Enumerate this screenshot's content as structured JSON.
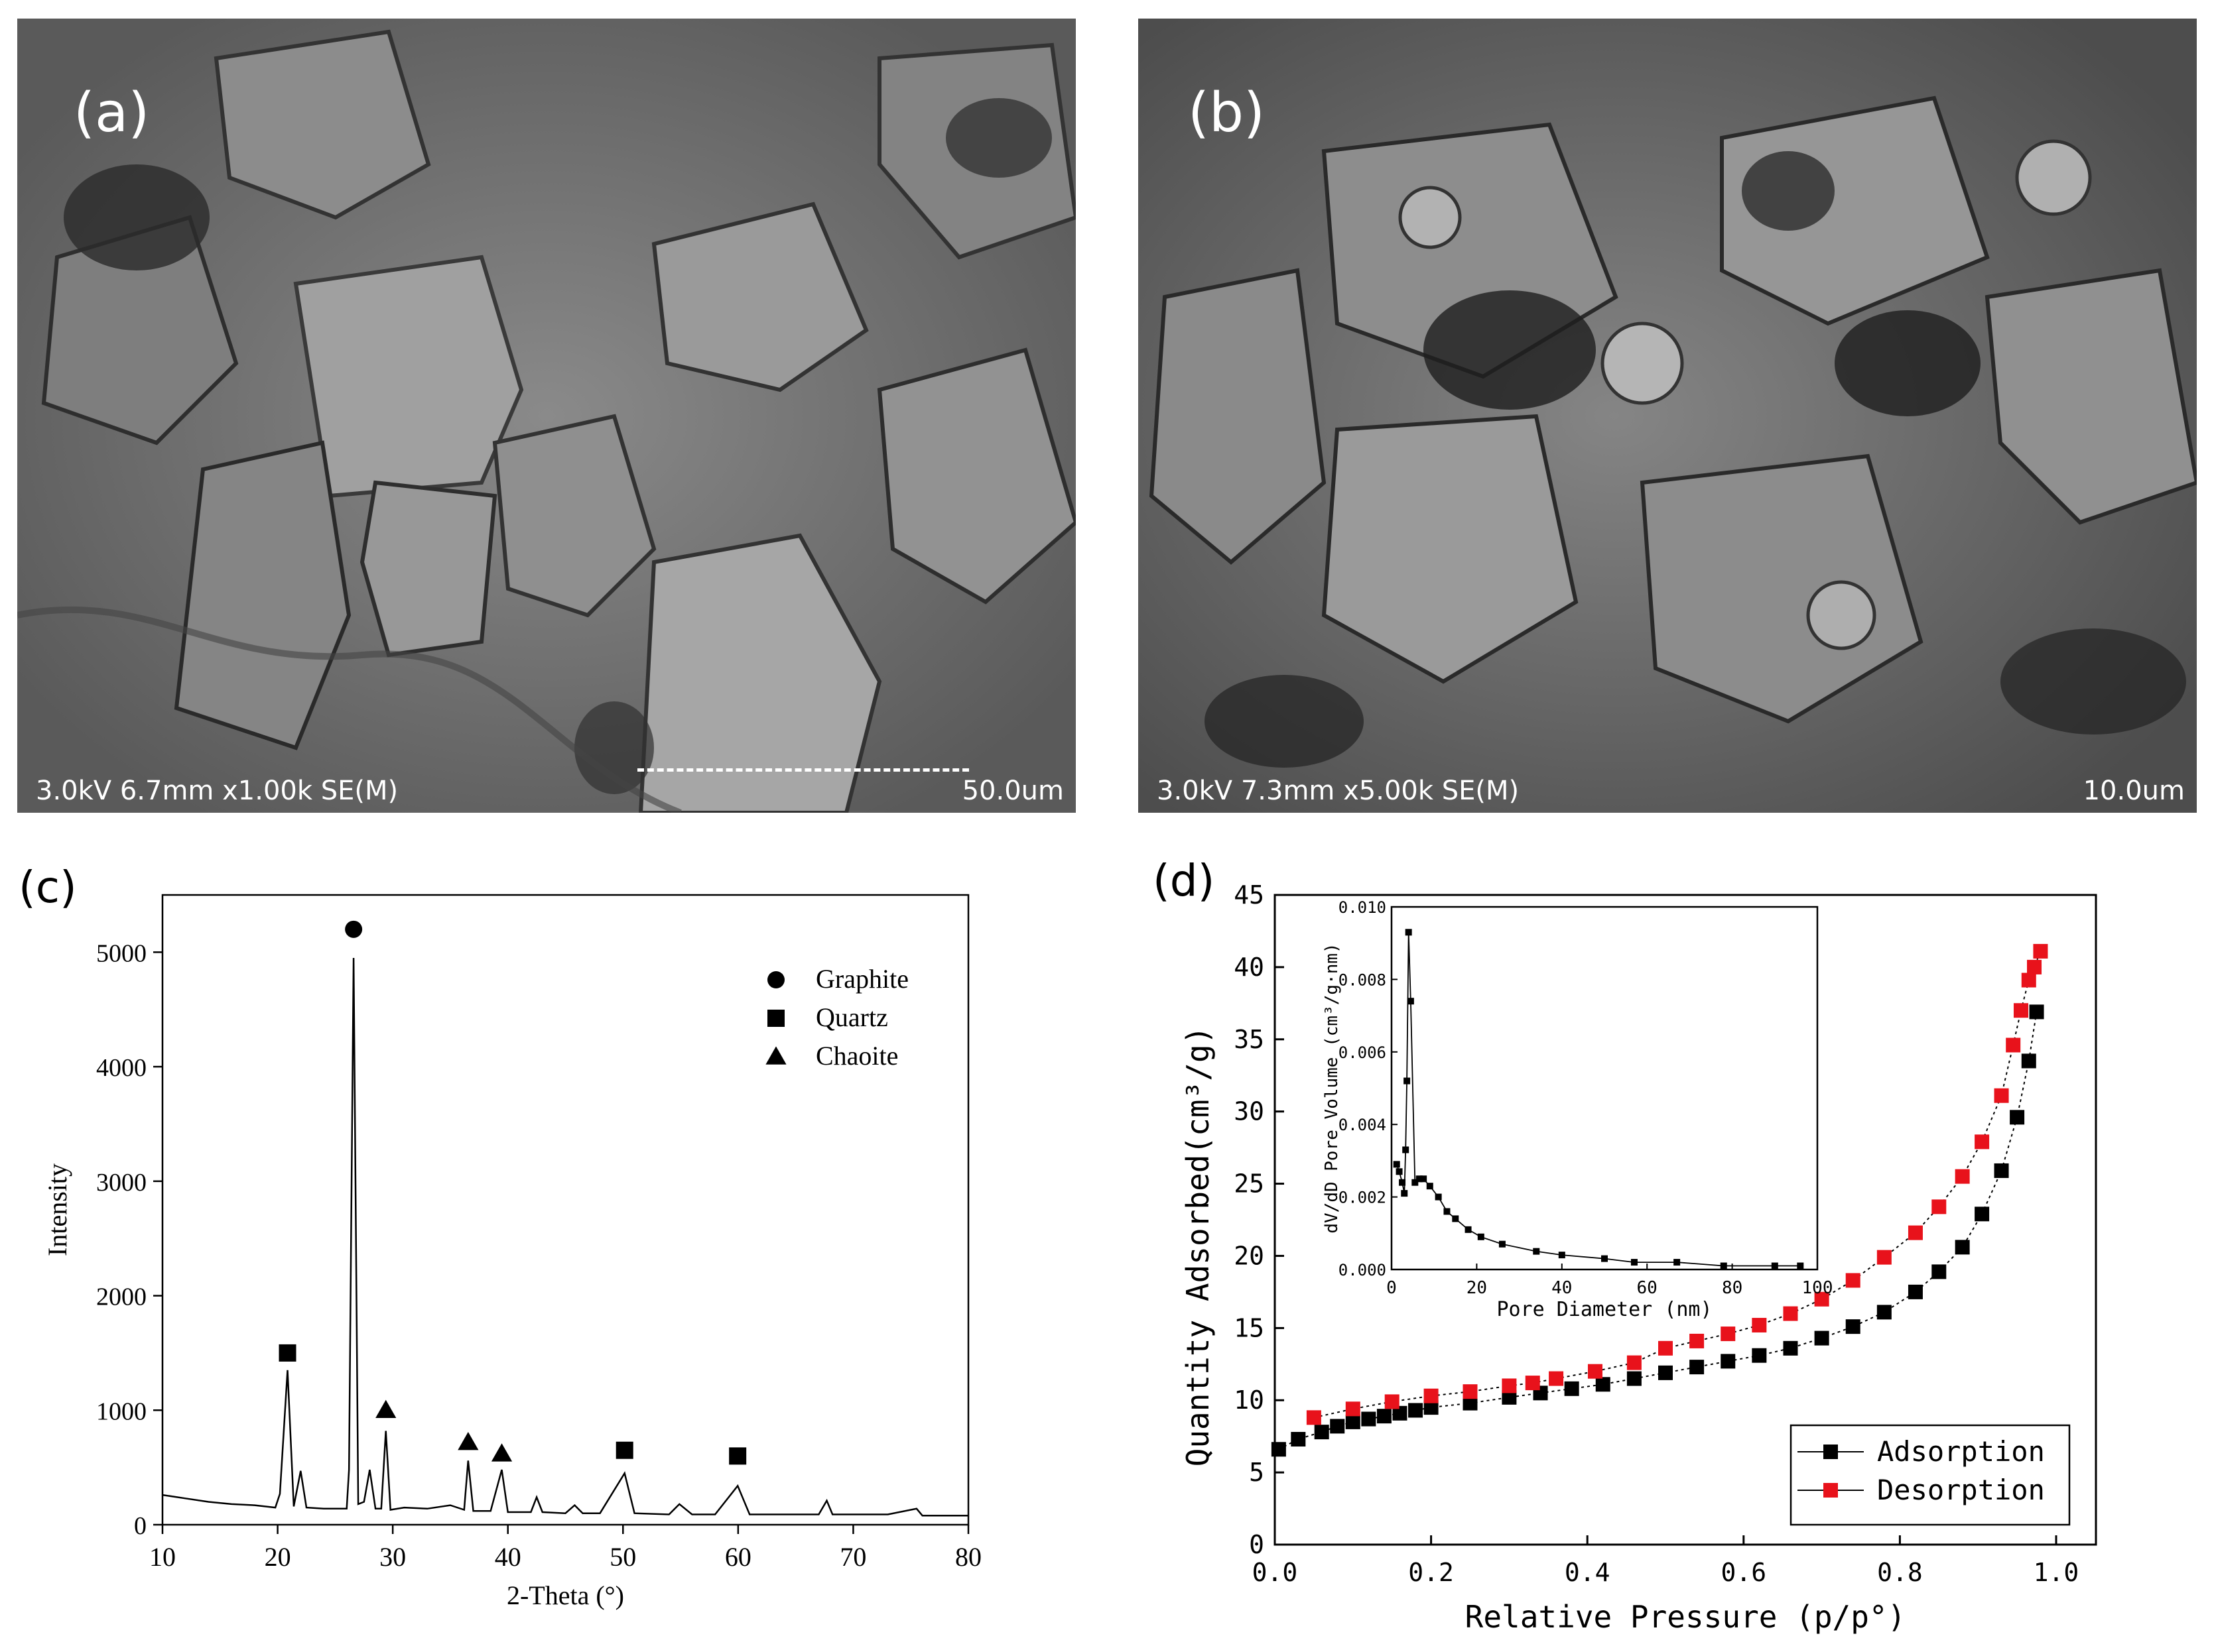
{
  "panels": {
    "a": {
      "label": "(a)",
      "info": "3.0kV 6.7mm x1.00k SE(M)",
      "scale": "50.0um"
    },
    "b": {
      "label": "(b)",
      "info": "3.0kV 7.3mm x5.00k SE(M)",
      "scale": "10.0um"
    },
    "c": {
      "label": "(c)"
    },
    "d": {
      "label": "(d)"
    }
  },
  "chart_data": [
    {
      "panel": "c",
      "type": "line",
      "xlabel": "2-Theta (°)",
      "ylabel": "Intensity",
      "xlim": [
        10,
        80
      ],
      "ylim": [
        0,
        5500
      ],
      "xticks": [
        10,
        20,
        30,
        40,
        50,
        60,
        70,
        80
      ],
      "yticks": [
        0,
        1000,
        2000,
        3000,
        4000,
        5000
      ],
      "series": [
        {
          "x": [
            10,
            12,
            14,
            16,
            18,
            19.8,
            20.2,
            20.86,
            21.4,
            22.0,
            22.5,
            24.0,
            26.0,
            26.2,
            26.6,
            27.0,
            27.5,
            28.0,
            28.5,
            29.0,
            29.4,
            29.8,
            31.0,
            33.0,
            35.0,
            36.2,
            36.55,
            37.0,
            38.5,
            39.47,
            40.0,
            42.0,
            42.5,
            43.0,
            45.0,
            45.8,
            46.5,
            48.0,
            50.14,
            51.0,
            54.0,
            54.9,
            56.0,
            58.0,
            59.96,
            61.0,
            64.0,
            67.0,
            67.7,
            68.2,
            70.0,
            73.0,
            75.5,
            76.0,
            78.0,
            80.0
          ],
          "y": [
            260,
            230,
            200,
            180,
            170,
            150,
            270,
            1350,
            160,
            470,
            150,
            140,
            140,
            480,
            4950,
            180,
            200,
            480,
            140,
            140,
            820,
            130,
            150,
            140,
            170,
            130,
            560,
            120,
            120,
            480,
            110,
            110,
            240,
            110,
            100,
            170,
            100,
            100,
            450,
            100,
            90,
            180,
            90,
            90,
            340,
            90,
            90,
            90,
            210,
            90,
            90,
            90,
            140,
            80,
            80,
            80
          ]
        }
      ],
      "legend": {
        "placement": "top-right",
        "entries": [
          {
            "name": "Graphite",
            "marker": "circle"
          },
          {
            "name": "Quartz",
            "marker": "square"
          },
          {
            "name": "Chaoite",
            "marker": "triangle"
          }
        ]
      },
      "peak_markers": [
        {
          "x": 26.6,
          "y": 5200,
          "marker": "circle"
        },
        {
          "x": 20.86,
          "y": 1500,
          "marker": "square"
        },
        {
          "x": 50.14,
          "y": 650,
          "marker": "square"
        },
        {
          "x": 59.96,
          "y": 600,
          "marker": "square"
        },
        {
          "x": 29.4,
          "y": 1000,
          "marker": "triangle"
        },
        {
          "x": 36.55,
          "y": 720,
          "marker": "triangle"
        },
        {
          "x": 39.47,
          "y": 620,
          "marker": "triangle"
        }
      ]
    },
    {
      "panel": "d",
      "type": "line",
      "xlabel": "Relative Pressure (p/p°)",
      "ylabel": "Quantity Adsorbed(cm³/g)",
      "xlim": [
        0,
        1.0
      ],
      "ylim": [
        0,
        45
      ],
      "xticks": [
        "0.0",
        "0.2",
        "0.4",
        "0.6",
        "0.8",
        "1.0"
      ],
      "yticks": [
        0,
        5,
        10,
        15,
        20,
        25,
        30,
        35,
        40,
        45
      ],
      "legend": {
        "placement": "bottom-right"
      },
      "series": [
        {
          "name": "Adsorption",
          "color": "#000000",
          "x": [
            0.005,
            0.03,
            0.06,
            0.08,
            0.1,
            0.12,
            0.14,
            0.16,
            0.18,
            0.2,
            0.25,
            0.3,
            0.34,
            0.38,
            0.42,
            0.46,
            0.5,
            0.54,
            0.58,
            0.62,
            0.66,
            0.7,
            0.74,
            0.78,
            0.82,
            0.85,
            0.88,
            0.905,
            0.93,
            0.95,
            0.965,
            0.975
          ],
          "y": [
            6.6,
            7.3,
            7.8,
            8.2,
            8.5,
            8.7,
            8.9,
            9.1,
            9.3,
            9.5,
            9.8,
            10.2,
            10.5,
            10.8,
            11.1,
            11.5,
            11.9,
            12.3,
            12.7,
            13.1,
            13.6,
            14.3,
            15.1,
            16.1,
            17.5,
            18.9,
            20.6,
            22.9,
            25.9,
            29.6,
            33.5,
            36.9
          ]
        },
        {
          "name": "Desorption",
          "color": "#e8121b",
          "x": [
            0.05,
            0.1,
            0.15,
            0.2,
            0.25,
            0.3,
            0.33,
            0.36,
            0.41,
            0.46,
            0.5,
            0.54,
            0.58,
            0.62,
            0.66,
            0.7,
            0.74,
            0.78,
            0.82,
            0.85,
            0.88,
            0.905,
            0.93,
            0.945,
            0.955,
            0.965,
            0.972,
            0.98
          ],
          "y": [
            8.8,
            9.4,
            9.9,
            10.3,
            10.6,
            11.0,
            11.2,
            11.5,
            12.0,
            12.6,
            13.6,
            14.1,
            14.6,
            15.2,
            16.0,
            17.0,
            18.3,
            19.9,
            21.6,
            23.4,
            25.5,
            27.9,
            31.1,
            34.6,
            37.0,
            39.1,
            40.0,
            41.1
          ]
        }
      ],
      "inset": {
        "type": "scatter",
        "xlabel": "Pore Diameter (nm)",
        "ylabel": "dV/dD Pore Volume (cm³/g·nm)",
        "xlim": [
          0,
          100
        ],
        "ylim": [
          0,
          0.01
        ],
        "xticks": [
          0,
          20,
          40,
          60,
          80,
          100
        ],
        "yticks": [
          "0.000",
          "0.002",
          "0.004",
          "0.006",
          "0.008",
          "0.010"
        ],
        "x": [
          1.2,
          1.8,
          2.5,
          3.0,
          3.3,
          3.6,
          4.0,
          4.5,
          5.5,
          6.5,
          7.5,
          9.0,
          11,
          13,
          15,
          18,
          21,
          26,
          34,
          40,
          50,
          57,
          67,
          78,
          90,
          96
        ],
        "y": [
          0.0029,
          0.0027,
          0.0024,
          0.0021,
          0.0033,
          0.0052,
          0.0093,
          0.0074,
          0.0024,
          0.0025,
          0.0025,
          0.0023,
          0.002,
          0.0016,
          0.0014,
          0.0011,
          0.0009,
          0.0007,
          0.0005,
          0.0004,
          0.0003,
          0.0002,
          0.0002,
          0.0001,
          0.0001,
          0.0001
        ]
      }
    }
  ]
}
